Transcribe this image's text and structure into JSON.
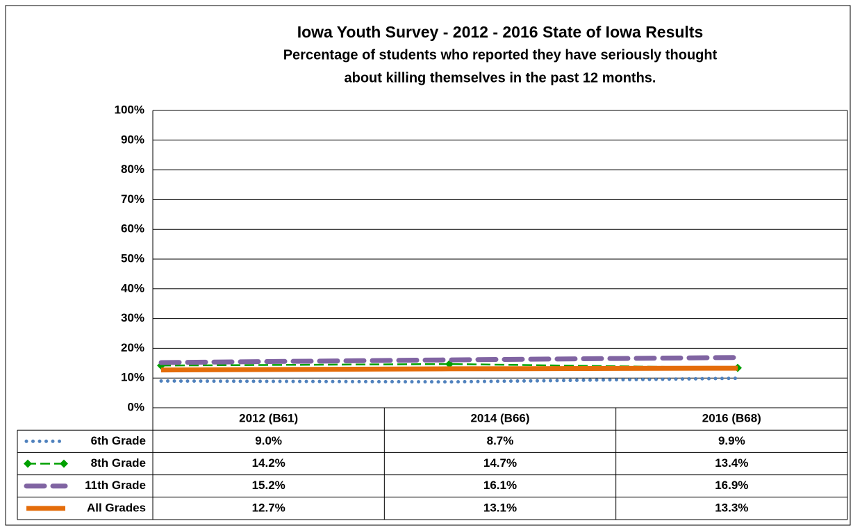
{
  "chart_data": {
    "type": "line",
    "title": "Iowa Youth Survey - 2012 - 2016 State of Iowa Results",
    "subtitle": [
      "Percentage of students who reported they have seriously thought",
      "about killing themselves in the past 12 months."
    ],
    "categories": [
      "2012 (B61)",
      "2014 (B66)",
      "2016 (B68)"
    ],
    "series": [
      {
        "name": "6th Grade",
        "color": "#4f81bd",
        "line_style": "dotted",
        "values": [
          9.0,
          8.7,
          9.9
        ],
        "value_labels": [
          "9.0%",
          "8.7%",
          "9.9%"
        ]
      },
      {
        "name": "8th Grade",
        "color": "#00a000",
        "line_style": "dashed",
        "marker": "diamond",
        "values": [
          14.2,
          14.7,
          13.4
        ],
        "value_labels": [
          "14.2%",
          "14.7%",
          "13.4%"
        ]
      },
      {
        "name": "11th Grade",
        "color": "#8064a2",
        "line_style": "long-dash",
        "values": [
          15.2,
          16.1,
          16.9
        ],
        "value_labels": [
          "15.2%",
          "16.1%",
          "16.9%"
        ]
      },
      {
        "name": "All Grades",
        "color": "#e46c0a",
        "line_style": "solid",
        "values": [
          12.7,
          13.1,
          13.3
        ],
        "value_labels": [
          "12.7%",
          "13.1%",
          "13.3%"
        ]
      }
    ],
    "ylim": [
      0,
      100
    ],
    "yticks": [
      {
        "value": 0,
        "label": "0%"
      },
      {
        "value": 10,
        "label": "10%"
      },
      {
        "value": 20,
        "label": "20%"
      },
      {
        "value": 30,
        "label": "30%"
      },
      {
        "value": 40,
        "label": "40%"
      },
      {
        "value": 50,
        "label": "50%"
      },
      {
        "value": 60,
        "label": "60%"
      },
      {
        "value": 70,
        "label": "70%"
      },
      {
        "value": 80,
        "label": "80%"
      },
      {
        "value": 90,
        "label": "90%"
      },
      {
        "value": 100,
        "label": "100%"
      }
    ],
    "grid": true,
    "data_table": true
  }
}
